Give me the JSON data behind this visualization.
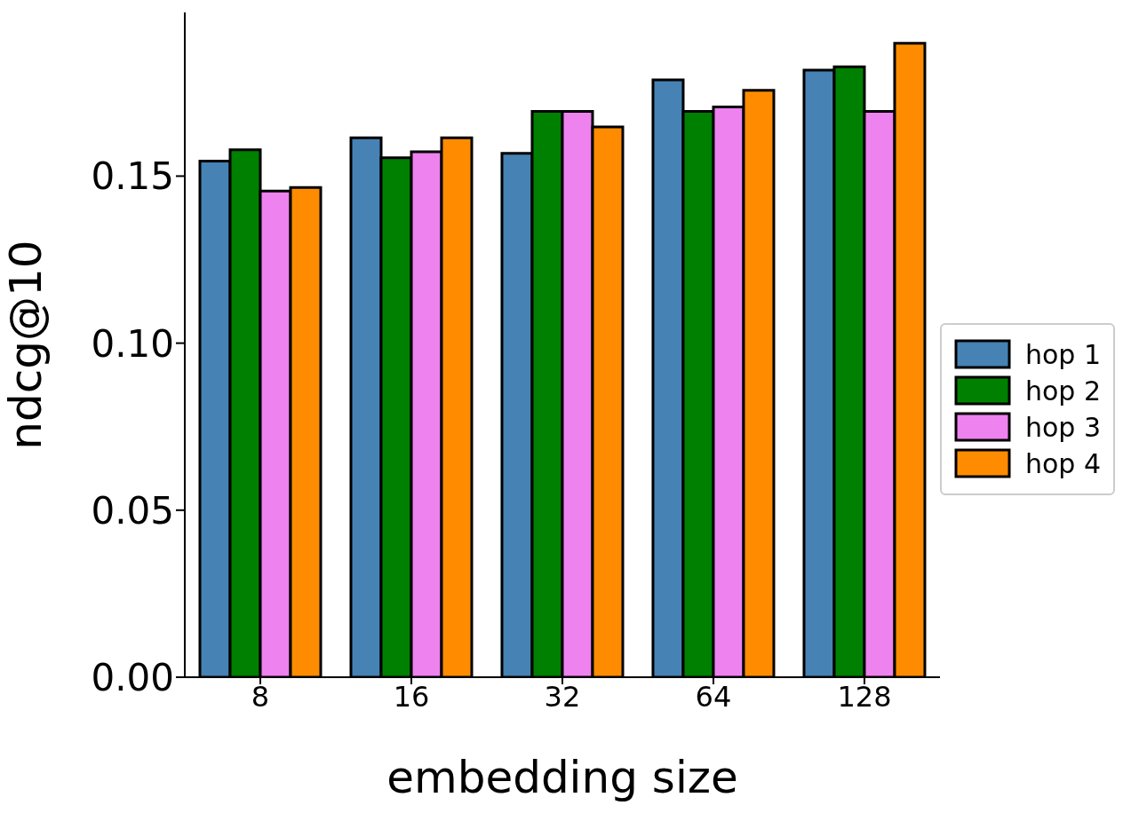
{
  "chart_data": {
    "type": "bar",
    "xlabel": "embedding size",
    "ylabel": "ndcg@10",
    "categories": [
      "8",
      "16",
      "32",
      "64",
      "128"
    ],
    "series": [
      {
        "name": "hop 1",
        "color": "#4682b4",
        "values": [
          0.1545,
          0.1615,
          0.1568,
          0.1788,
          0.1817
        ]
      },
      {
        "name": "hop 2",
        "color": "#008000",
        "values": [
          0.1579,
          0.1555,
          0.1694,
          0.1694,
          0.1827
        ]
      },
      {
        "name": "hop 3",
        "color": "#ee82ee",
        "values": [
          0.1455,
          0.1573,
          0.1694,
          0.1707,
          0.1694
        ]
      },
      {
        "name": "hop 4",
        "color": "#ff8c00",
        "values": [
          0.1466,
          0.1615,
          0.1647,
          0.1757,
          0.1898
        ]
      }
    ],
    "ylim": [
      0,
      0.199
    ],
    "yticks": [
      {
        "value": 0,
        "label": "0.00"
      },
      {
        "value": 0.05,
        "label": "0.05"
      },
      {
        "value": 0.1,
        "label": "0.10"
      },
      {
        "value": 0.15,
        "label": "0.15"
      }
    ],
    "grid": false,
    "legend": "right"
  }
}
